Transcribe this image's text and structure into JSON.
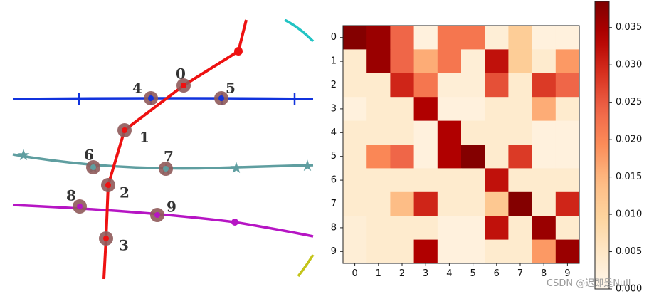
{
  "graph": {
    "nodes": [
      {
        "id": "0",
        "label": "0"
      },
      {
        "id": "1",
        "label": "1"
      },
      {
        "id": "2",
        "label": "2"
      },
      {
        "id": "3",
        "label": "3"
      },
      {
        "id": "4",
        "label": "4"
      },
      {
        "id": "5",
        "label": "5"
      },
      {
        "id": "6",
        "label": "6"
      },
      {
        "id": "7",
        "label": "7"
      },
      {
        "id": "8",
        "label": "8"
      },
      {
        "id": "9",
        "label": "9"
      }
    ],
    "colors": {
      "red": "#ee1111",
      "blue": "#1133dd",
      "teal": "#5f9ea0",
      "purple": "#b615c4",
      "cyan": "#22c4c4",
      "olive": "#c4c41a",
      "node_fill": "#8f5a5a"
    }
  },
  "chart_data": {
    "type": "heatmap",
    "x_ticks": [
      "0",
      "1",
      "2",
      "3",
      "4",
      "5",
      "6",
      "7",
      "8",
      "9"
    ],
    "y_ticks": [
      "0",
      "1",
      "2",
      "3",
      "4",
      "5",
      "6",
      "7",
      "8",
      "9"
    ],
    "matrix": [
      [
        0.038,
        0.036,
        0.024,
        0.002,
        0.022,
        0.022,
        0.003,
        0.011,
        0.002,
        0.002
      ],
      [
        0.004,
        0.036,
        0.024,
        0.016,
        0.022,
        0.003,
        0.032,
        0.011,
        0.004,
        0.018
      ],
      [
        0.004,
        0.004,
        0.03,
        0.022,
        0.003,
        0.003,
        0.026,
        0.004,
        0.028,
        0.024
      ],
      [
        0.002,
        0.004,
        0.004,
        0.034,
        0.002,
        0.002,
        0.004,
        0.004,
        0.016,
        0.004
      ],
      [
        0.004,
        0.004,
        0.004,
        0.002,
        0.034,
        0.004,
        0.004,
        0.004,
        0.002,
        0.002
      ],
      [
        0.004,
        0.02,
        0.024,
        0.002,
        0.034,
        0.038,
        0.004,
        0.028,
        0.002,
        0.002
      ],
      [
        0.004,
        0.004,
        0.004,
        0.004,
        0.004,
        0.004,
        0.032,
        0.004,
        0.004,
        0.004
      ],
      [
        0.004,
        0.004,
        0.014,
        0.03,
        0.004,
        0.004,
        0.012,
        0.038,
        0.004,
        0.03
      ],
      [
        0.003,
        0.004,
        0.004,
        0.004,
        0.002,
        0.002,
        0.032,
        0.004,
        0.036,
        0.004
      ],
      [
        0.003,
        0.004,
        0.004,
        0.034,
        0.002,
        0.002,
        0.004,
        0.004,
        0.018,
        0.036
      ]
    ],
    "colorbar": {
      "min": 0.0,
      "max": 0.0385,
      "ticks": [
        0.0,
        0.005,
        0.01,
        0.015,
        0.02,
        0.025,
        0.03,
        0.035
      ],
      "tick_labels": [
        "0.000",
        "0.005",
        "0.010",
        "0.015",
        "0.020",
        "0.025",
        "0.030",
        "0.035"
      ]
    },
    "colormap": "OrRd"
  },
  "watermark": "CSDN @迟即是Null"
}
